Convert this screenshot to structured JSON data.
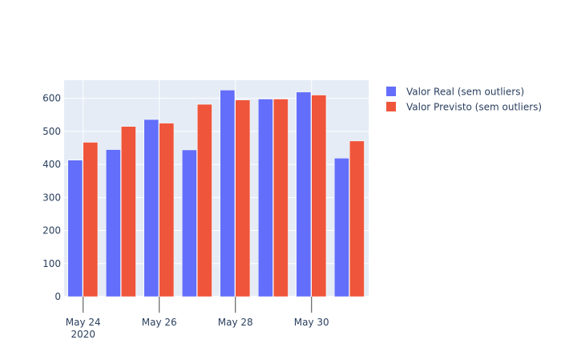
{
  "chart_data": {
    "type": "bar",
    "x_type": "date",
    "categories": [
      "2020-05-24",
      "2020-05-25",
      "2020-05-26",
      "2020-05-27",
      "2020-05-28",
      "2020-05-29",
      "2020-05-30",
      "2020-05-31"
    ],
    "series": [
      {
        "name": "Valor Real (sem outliers)",
        "color": "#636efa",
        "values": [
          413,
          445,
          536,
          444,
          625,
          598,
          619,
          419
        ]
      },
      {
        "name": "Valor Previsto (sem outliers)",
        "color": "#ef553b",
        "values": [
          467,
          515,
          525,
          582,
          595,
          598,
          610,
          471
        ]
      }
    ],
    "ylim": [
      0,
      655
    ],
    "y_ticks": [
      0,
      100,
      200,
      300,
      400,
      500,
      600
    ],
    "x_tick_positions": [
      "2020-05-24",
      "2020-05-26",
      "2020-05-28",
      "2020-05-30"
    ],
    "x_tick_labels": [
      "May 24",
      "May 26",
      "May 28",
      "May 30"
    ],
    "x_year_label": "2020",
    "grid": true,
    "legend_position": "top-right",
    "plot_bgcolor": "#e5ecf6",
    "title": "",
    "xlabel": "",
    "ylabel": ""
  }
}
